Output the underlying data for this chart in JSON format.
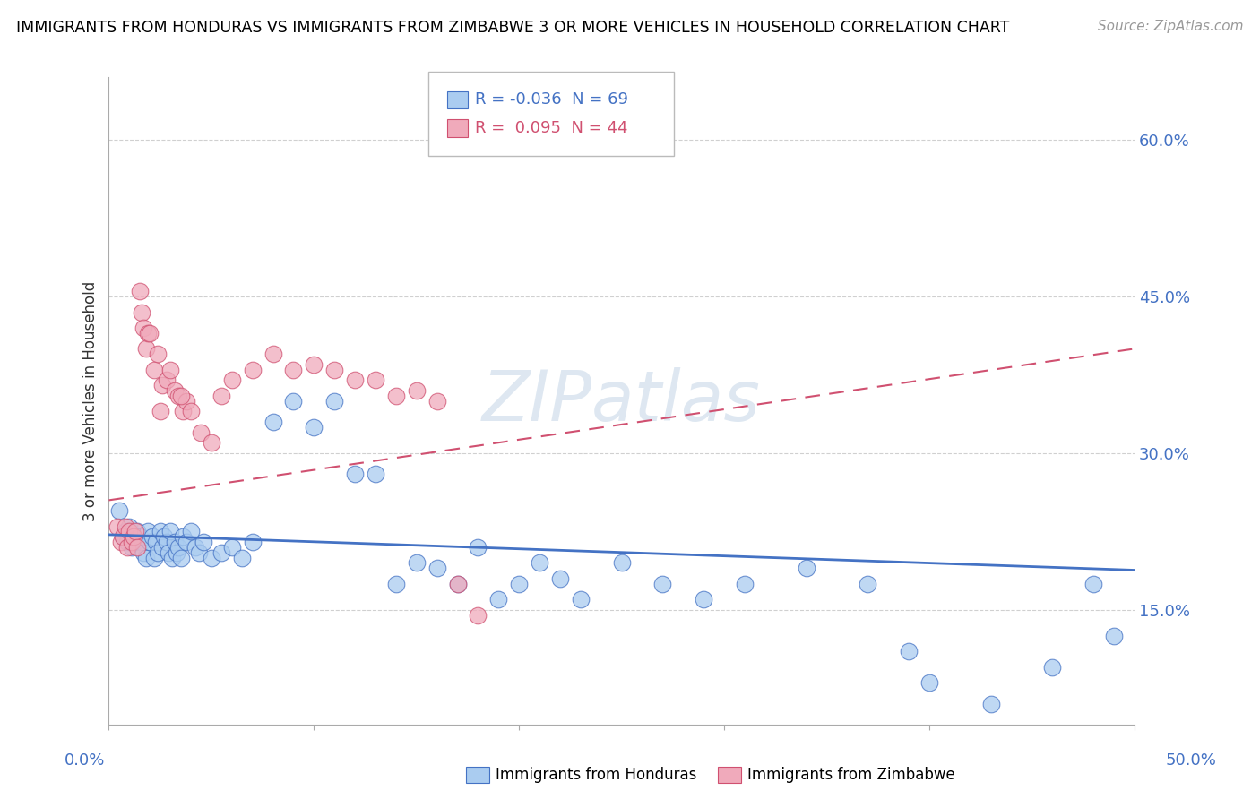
{
  "title": "IMMIGRANTS FROM HONDURAS VS IMMIGRANTS FROM ZIMBABWE 3 OR MORE VEHICLES IN HOUSEHOLD CORRELATION CHART",
  "source": "Source: ZipAtlas.com",
  "ylabel": "3 or more Vehicles in Household",
  "ylabel_ticks": [
    "15.0%",
    "30.0%",
    "45.0%",
    "60.0%"
  ],
  "ylabel_tick_vals": [
    0.15,
    0.3,
    0.45,
    0.6
  ],
  "xlim": [
    0.0,
    0.5
  ],
  "ylim": [
    0.04,
    0.66
  ],
  "color_honduras": "#aaccf0",
  "color_zimbabwe": "#f0aabb",
  "color_line_honduras": "#4472c4",
  "color_line_zimbabwe": "#d05070",
  "honduras_x": [
    0.005,
    0.007,
    0.008,
    0.009,
    0.01,
    0.011,
    0.012,
    0.013,
    0.014,
    0.015,
    0.016,
    0.017,
    0.018,
    0.019,
    0.02,
    0.021,
    0.022,
    0.023,
    0.024,
    0.025,
    0.026,
    0.027,
    0.028,
    0.029,
    0.03,
    0.031,
    0.032,
    0.033,
    0.034,
    0.035,
    0.036,
    0.038,
    0.04,
    0.042,
    0.044,
    0.046,
    0.05,
    0.055,
    0.06,
    0.065,
    0.07,
    0.08,
    0.09,
    0.1,
    0.11,
    0.12,
    0.13,
    0.14,
    0.15,
    0.16,
    0.17,
    0.18,
    0.19,
    0.2,
    0.21,
    0.22,
    0.23,
    0.25,
    0.27,
    0.29,
    0.31,
    0.34,
    0.37,
    0.4,
    0.43,
    0.46,
    0.49,
    0.39,
    0.48
  ],
  "honduras_y": [
    0.245,
    0.22,
    0.225,
    0.215,
    0.23,
    0.21,
    0.22,
    0.215,
    0.225,
    0.22,
    0.215,
    0.205,
    0.2,
    0.225,
    0.215,
    0.22,
    0.2,
    0.215,
    0.205,
    0.225,
    0.21,
    0.22,
    0.215,
    0.205,
    0.225,
    0.2,
    0.215,
    0.205,
    0.21,
    0.2,
    0.22,
    0.215,
    0.225,
    0.21,
    0.205,
    0.215,
    0.2,
    0.205,
    0.21,
    0.2,
    0.215,
    0.33,
    0.35,
    0.325,
    0.35,
    0.28,
    0.28,
    0.175,
    0.195,
    0.19,
    0.175,
    0.21,
    0.16,
    0.175,
    0.195,
    0.18,
    0.16,
    0.195,
    0.175,
    0.16,
    0.175,
    0.19,
    0.175,
    0.08,
    0.06,
    0.095,
    0.125,
    0.11,
    0.175
  ],
  "zimbabwe_x": [
    0.004,
    0.006,
    0.007,
    0.008,
    0.009,
    0.01,
    0.011,
    0.012,
    0.013,
    0.014,
    0.015,
    0.016,
    0.017,
    0.018,
    0.019,
    0.02,
    0.022,
    0.024,
    0.026,
    0.028,
    0.03,
    0.032,
    0.034,
    0.036,
    0.038,
    0.04,
    0.045,
    0.05,
    0.06,
    0.07,
    0.08,
    0.09,
    0.1,
    0.11,
    0.12,
    0.13,
    0.14,
    0.15,
    0.16,
    0.025,
    0.035,
    0.055,
    0.17,
    0.18
  ],
  "zimbabwe_y": [
    0.23,
    0.215,
    0.22,
    0.23,
    0.21,
    0.225,
    0.215,
    0.22,
    0.225,
    0.21,
    0.455,
    0.435,
    0.42,
    0.4,
    0.415,
    0.415,
    0.38,
    0.395,
    0.365,
    0.37,
    0.38,
    0.36,
    0.355,
    0.34,
    0.35,
    0.34,
    0.32,
    0.31,
    0.37,
    0.38,
    0.395,
    0.38,
    0.385,
    0.38,
    0.37,
    0.37,
    0.355,
    0.36,
    0.35,
    0.34,
    0.355,
    0.355,
    0.175,
    0.145
  ],
  "h_line_x0": 0.0,
  "h_line_x1": 0.5,
  "h_line_y0": 0.222,
  "h_line_y1": 0.188,
  "z_line_x0": 0.0,
  "z_line_x1": 0.5,
  "z_line_y0": 0.255,
  "z_line_y1": 0.4
}
